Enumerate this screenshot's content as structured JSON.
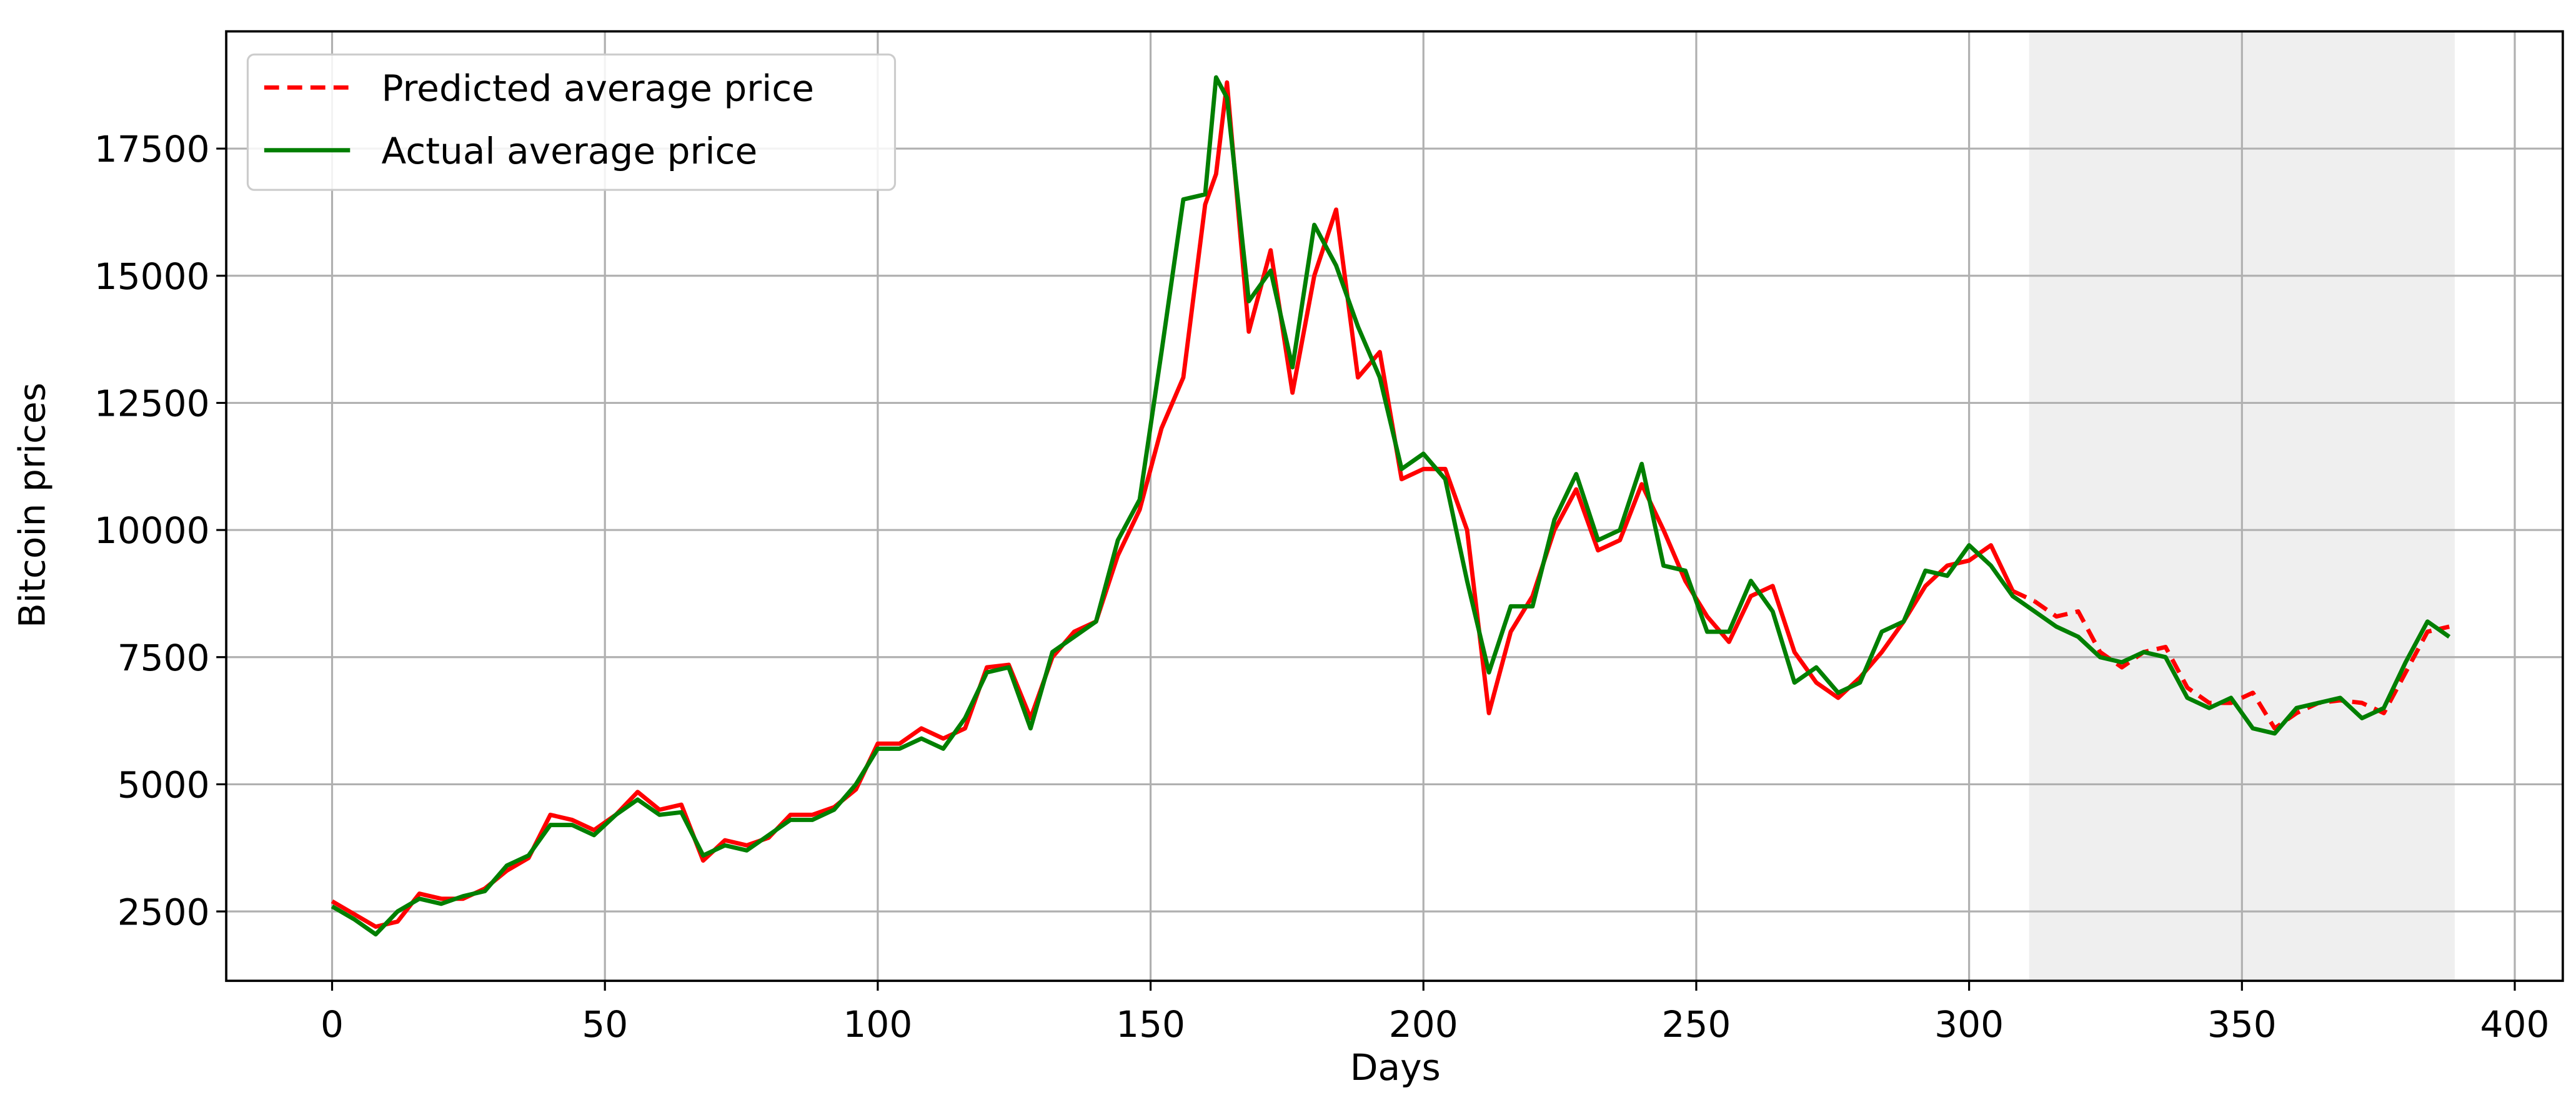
{
  "chart_data": {
    "type": "line",
    "xlabel": "Days",
    "ylabel": "Bitcoin prices",
    "x": [
      0,
      4,
      8,
      12,
      16,
      20,
      24,
      28,
      32,
      36,
      40,
      44,
      48,
      52,
      56,
      60,
      64,
      68,
      72,
      76,
      80,
      84,
      88,
      92,
      96,
      100,
      104,
      108,
      112,
      116,
      120,
      124,
      128,
      132,
      136,
      140,
      144,
      148,
      152,
      156,
      160,
      162,
      164,
      168,
      172,
      176,
      180,
      184,
      188,
      192,
      196,
      200,
      204,
      208,
      212,
      216,
      220,
      224,
      228,
      232,
      236,
      240,
      244,
      248,
      252,
      256,
      260,
      264,
      268,
      272,
      276,
      280,
      284,
      288,
      292,
      296,
      300,
      304,
      308,
      312,
      316,
      320,
      324,
      328,
      332,
      336,
      340,
      344,
      348,
      352,
      356,
      360,
      364,
      368,
      372,
      376,
      380,
      384,
      388
    ],
    "series": [
      {
        "name": "Predicted average price",
        "color": "#ff0000",
        "dash_from_x": 311,
        "values": [
          2700,
          2450,
          2200,
          2300,
          2850,
          2750,
          2750,
          2950,
          3300,
          3550,
          4400,
          4300,
          4100,
          4400,
          4850,
          4500,
          4600,
          3500,
          3900,
          3800,
          3950,
          4400,
          4400,
          4550,
          4900,
          5800,
          5800,
          6100,
          5900,
          6100,
          7300,
          7350,
          6300,
          7500,
          8000,
          8200,
          9500,
          10400,
          12000,
          13000,
          16400,
          17000,
          18800,
          13900,
          15500,
          12700,
          15000,
          16300,
          13000,
          13500,
          11000,
          11200,
          11200,
          10000,
          6400,
          8000,
          8700,
          10000,
          10800,
          9600,
          9800,
          10900,
          10000,
          9000,
          8300,
          7800,
          8700,
          8900,
          7600,
          7000,
          6700,
          7100,
          7600,
          8200,
          8900,
          9300,
          9400,
          9700,
          8800,
          8600,
          8300,
          8400,
          7600,
          7300,
          7600,
          7700,
          6900,
          6600,
          6600,
          6800,
          6100,
          6400,
          6600,
          6650,
          6600,
          6400,
          7200,
          8000,
          8100
        ]
      },
      {
        "name": "Actual average price",
        "color": "#007f00",
        "values": [
          2600,
          2350,
          2050,
          2500,
          2750,
          2650,
          2800,
          2900,
          3400,
          3600,
          4200,
          4200,
          4000,
          4400,
          4700,
          4400,
          4450,
          3600,
          3800,
          3700,
          4000,
          4300,
          4300,
          4500,
          5000,
          5700,
          5700,
          5900,
          5700,
          6300,
          7200,
          7300,
          6100,
          7600,
          7900,
          8200,
          9800,
          10600,
          13500,
          16500,
          16600,
          18900,
          18500,
          14500,
          15100,
          13200,
          16000,
          15200,
          14000,
          13000,
          11200,
          11500,
          11000,
          9000,
          7200,
          8500,
          8500,
          10200,
          11100,
          9800,
          10000,
          11300,
          9300,
          9200,
          8000,
          8000,
          9000,
          8400,
          7000,
          7300,
          6800,
          7000,
          8000,
          8200,
          9200,
          9100,
          9700,
          9300,
          8700,
          8400,
          8100,
          7900,
          7500,
          7400,
          7600,
          7500,
          6700,
          6500,
          6700,
          6100,
          6000,
          6500,
          6600,
          6700,
          6300,
          6500,
          7400,
          8200,
          7900
        ]
      }
    ],
    "shaded_xrange": [
      311,
      389
    ],
    "xlim": [
      -19.4,
      408.8
    ],
    "xticks": [
      0,
      50,
      100,
      150,
      200,
      250,
      300,
      350,
      400
    ],
    "ylim": [
      1136,
      19805
    ],
    "yticks": [
      2500,
      5000,
      7500,
      10000,
      12500,
      15000,
      17500
    ],
    "grid": true,
    "legend": "upper left"
  }
}
